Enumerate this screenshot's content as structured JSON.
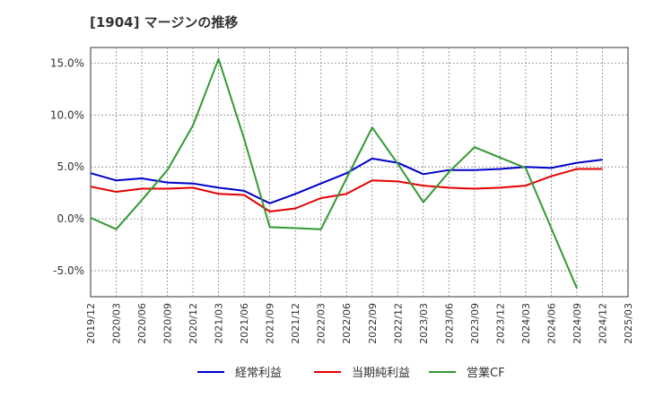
{
  "chart_data": {
    "type": "line",
    "title": "[1904]  マージンの推移",
    "xlabel": "",
    "ylabel": "",
    "x": [
      "2019/12",
      "2020/03",
      "2020/06",
      "2020/09",
      "2020/12",
      "2021/03",
      "2021/06",
      "2021/09",
      "2021/12",
      "2022/03",
      "2022/06",
      "2022/09",
      "2022/12",
      "2023/03",
      "2023/06",
      "2023/09",
      "2023/12",
      "2024/03",
      "2024/06",
      "2024/09",
      "2024/12",
      "2025/03"
    ],
    "ylim": [
      -7.5,
      16.5
    ],
    "yticks": [
      -5.0,
      0.0,
      5.0,
      10.0,
      15.0
    ],
    "ytick_labels": [
      "-5.0%",
      "0.0%",
      "5.0%",
      "10.0%",
      "15.0%"
    ],
    "grid": true,
    "legend_position": "bottom",
    "series": [
      {
        "name": "経常利益",
        "color": "#0000cc",
        "values": [
          4.4,
          3.7,
          3.9,
          3.5,
          3.4,
          3.0,
          2.7,
          1.5,
          2.4,
          3.4,
          4.4,
          5.8,
          5.4,
          4.3,
          4.7,
          4.7,
          4.8,
          5.0,
          4.9,
          5.4,
          5.7,
          null
        ]
      },
      {
        "name": "当期純利益",
        "color": "#e60000",
        "values": [
          3.1,
          2.6,
          2.9,
          2.9,
          3.0,
          2.4,
          2.3,
          0.7,
          1.0,
          2.0,
          2.4,
          3.7,
          3.6,
          3.2,
          3.0,
          2.9,
          3.0,
          3.2,
          4.1,
          4.8,
          4.8,
          null
        ]
      },
      {
        "name": "営業CF",
        "color": "#339933",
        "values": [
          0.1,
          -1.0,
          1.8,
          4.7,
          9.0,
          15.4,
          7.7,
          -0.8,
          -0.9,
          -1.0,
          3.9,
          8.8,
          5.3,
          1.6,
          4.5,
          6.9,
          5.9,
          4.9,
          -0.9,
          -6.7,
          null,
          null
        ]
      }
    ]
  }
}
